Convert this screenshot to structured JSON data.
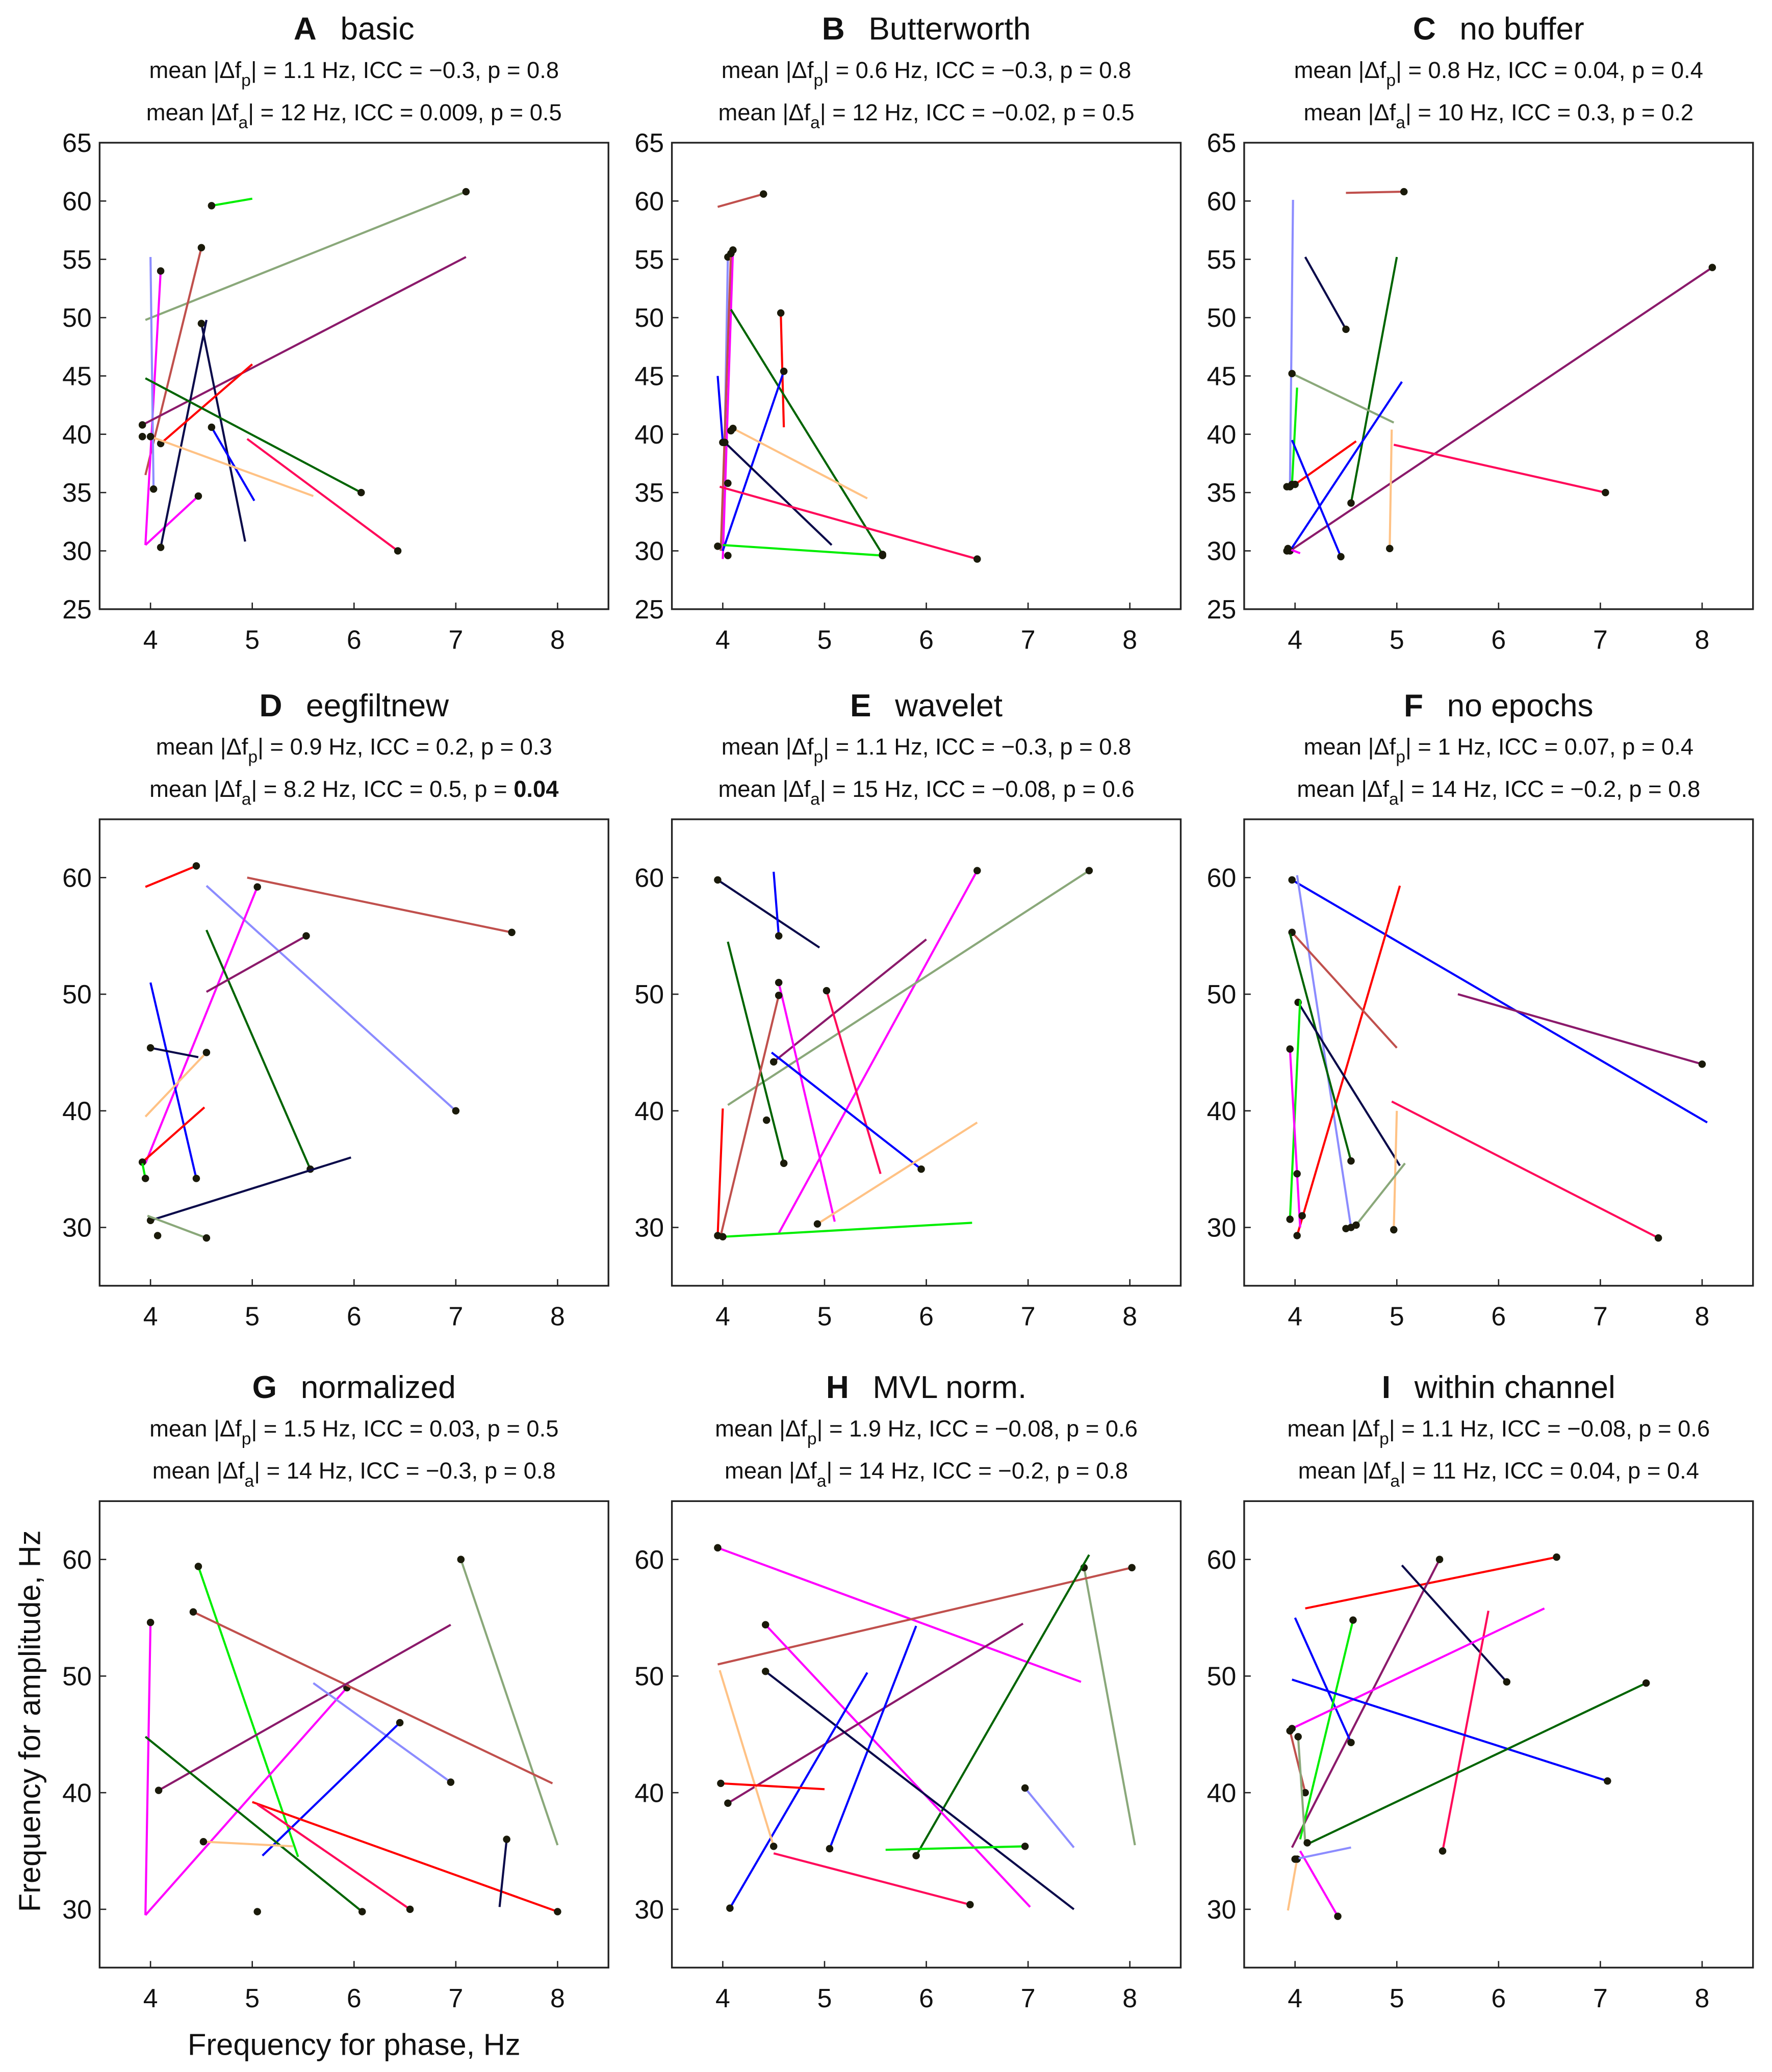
{
  "chart_data": {
    "type": "line",
    "xlabel": "Frequency for phase, Hz",
    "ylabel": "Frequency for amplitude, Hz",
    "xlim": [
      3.5,
      8.5
    ],
    "ylim": [
      25,
      65
    ],
    "xticks": [
      "4",
      "5",
      "6",
      "7",
      "8"
    ],
    "yticks_row1": [
      "25",
      "30",
      "35",
      "40",
      "45",
      "50",
      "55",
      "60",
      "65"
    ],
    "yticks_other": [
      "30",
      "40",
      "50",
      "60"
    ],
    "stat_labels": {
      "prefix": "mean |Δf",
      "mid": "| = ",
      "icc": ", ICC = ",
      "p": ", p = "
    },
    "colors": {
      "green": "#00ee00",
      "greygreen": "#8aa87a",
      "brown": "#c0504d",
      "magenta": "#ff00ff",
      "lightblue": "#8c8cff",
      "purple": "#8b1a6b",
      "navy": "#0a0a4a",
      "red": "#ff0000",
      "darkgreen": "#006400",
      "blue": "#0000ff",
      "peach": "#ffc285",
      "pinkred": "#ff0a5a"
    },
    "panels": [
      {
        "letter": "A",
        "name": "basic",
        "stats": [
          {
            "sub": "p",
            "value": "1.1 Hz",
            "icc": "−0.3",
            "p": "0.8"
          },
          {
            "sub": "a",
            "value": "12 Hz",
            "icc": "0.009",
            "p": "0.5"
          }
        ],
        "segments": [
          [
            "green",
            4.6,
            59.6,
            5.0,
            60.2
          ],
          [
            "greygreen",
            7.1,
            60.8,
            3.95,
            49.8
          ],
          [
            "brown",
            4.5,
            56,
            3.95,
            36.5
          ],
          [
            "magenta",
            4.1,
            54,
            3.95,
            30.5
          ],
          [
            "magenta",
            4.47,
            34.7,
            3.95,
            30.5
          ],
          [
            "lightblue",
            4.03,
            35.3,
            4.0,
            55.2
          ],
          [
            "purple",
            3.92,
            40.8,
            7.1,
            55.2
          ],
          [
            "navy",
            4.5,
            49.5,
            4.93,
            30.8
          ],
          [
            "navy",
            4.1,
            30.3,
            4.55,
            49.8
          ],
          [
            "red",
            4.1,
            39.2,
            5.0,
            46
          ],
          [
            "darkgreen",
            6.07,
            35,
            3.95,
            44.8
          ],
          [
            "blue",
            4.6,
            40.6,
            5.02,
            34.3
          ],
          [
            "peach",
            4.0,
            39.8,
            5.6,
            34.7
          ],
          [
            "pinkred",
            6.43,
            30,
            4.95,
            39.6
          ]
        ],
        "dots": [
          [
            3.92,
            39.8
          ]
        ]
      },
      {
        "letter": "B",
        "name": "Butterworth",
        "stats": [
          {
            "sub": "p",
            "value": "0.6 Hz",
            "icc": "−0.3",
            "p": "0.8"
          },
          {
            "sub": "a",
            "value": "12 Hz",
            "icc": "−0.02",
            "p": "0.5"
          }
        ],
        "segments": [
          [
            "brown",
            4.4,
            60.6,
            3.95,
            59.5
          ],
          [
            "lightblue",
            4.05,
            55.2,
            4.0,
            30
          ],
          [
            "magenta",
            4.1,
            55.8,
            4.0,
            29.3
          ],
          [
            "brown",
            4.08,
            55.5,
            3.98,
            30
          ],
          [
            "red",
            4.57,
            50.4,
            4.6,
            40.6
          ],
          [
            "darkgreen",
            5.57,
            29.7,
            4.08,
            50.7
          ],
          [
            "blue",
            4.6,
            45.4,
            4.0,
            30
          ],
          [
            "blue",
            4.0,
            39.3,
            3.95,
            45
          ],
          [
            "peach",
            4.1,
            40.5,
            5.42,
            34.5
          ],
          [
            "navy",
            4.02,
            39.3,
            5.07,
            30.5
          ],
          [
            "pinkred",
            6.5,
            29.3,
            3.97,
            35.5
          ],
          [
            "green",
            5.57,
            29.6,
            4.0,
            30.5
          ]
        ],
        "dots": [
          [
            4.08,
            40.3
          ],
          [
            3.95,
            30.4
          ],
          [
            4.05,
            29.6
          ],
          [
            4.05,
            35.8
          ]
        ]
      },
      {
        "letter": "C",
        "name": "no buffer",
        "stats": [
          {
            "sub": "p",
            "value": "0.8 Hz",
            "icc": "0.04",
            "p": "0.4"
          },
          {
            "sub": "a",
            "value": "10 Hz",
            "icc": "0.3",
            "p": "0.2"
          }
        ],
        "segments": [
          [
            "brown",
            5.07,
            60.8,
            4.5,
            60.7
          ],
          [
            "lightblue",
            3.95,
            35.5,
            3.98,
            60.1
          ],
          [
            "navy",
            4.5,
            49,
            4.1,
            55.2
          ],
          [
            "darkgreen",
            4.55,
            34.1,
            5.0,
            55.2
          ],
          [
            "purple",
            8.1,
            54.3,
            3.95,
            30
          ],
          [
            "greygreen",
            3.97,
            45.2,
            4.97,
            41
          ],
          [
            "blue",
            3.95,
            30,
            5.05,
            44.5
          ],
          [
            "green",
            3.97,
            35.7,
            4.02,
            44
          ],
          [
            "red",
            4.0,
            35.7,
            4.6,
            39.4
          ],
          [
            "blue",
            4.45,
            29.5,
            3.97,
            39.5
          ],
          [
            "pinkred",
            7.05,
            35,
            4.97,
            39.1
          ],
          [
            "peach",
            4.93,
            30.2,
            4.95,
            40.4
          ],
          [
            "magenta",
            3.93,
            30.2,
            4.05,
            29.8
          ]
        ],
        "dots": [
          [
            3.92,
            35.5
          ],
          [
            3.92,
            30
          ]
        ]
      },
      {
        "letter": "D",
        "name": "eegfiltnew",
        "stats": [
          {
            "sub": "p",
            "value": "0.9 Hz",
            "icc": "0.2",
            "p": "0.3"
          },
          {
            "sub": "a",
            "value": "8.2 Hz",
            "icc": "0.5",
            "p": "0.04",
            "bold": true
          }
        ],
        "segments": [
          [
            "red",
            4.45,
            61,
            3.95,
            59.2
          ],
          [
            "brown",
            7.55,
            55.3,
            4.95,
            60
          ],
          [
            "lightblue",
            7.0,
            40,
            4.55,
            59.3
          ],
          [
            "magenta",
            5.05,
            59.2,
            3.95,
            35.5
          ],
          [
            "darkgreen",
            5.57,
            35,
            4.55,
            55.5
          ],
          [
            "purple",
            5.53,
            55,
            4.55,
            50.2
          ],
          [
            "blue",
            4.45,
            34.2,
            4.0,
            51
          ],
          [
            "navy",
            4.0,
            45.4,
            4.47,
            44.6
          ],
          [
            "peach",
            4.55,
            45,
            3.95,
            39.5
          ],
          [
            "red",
            3.92,
            35.6,
            4.53,
            40.3
          ],
          [
            "navy",
            4.0,
            30.6,
            5.97,
            36
          ],
          [
            "green",
            3.95,
            34.2,
            3.92,
            35.5
          ],
          [
            "greygreen",
            4.55,
            29.1,
            3.97,
            31
          ]
        ],
        "dots": [
          [
            4.07,
            29.3
          ]
        ]
      },
      {
        "letter": "E",
        "name": "wavelet",
        "stats": [
          {
            "sub": "p",
            "value": "1.1 Hz",
            "icc": "−0.3",
            "p": "0.8"
          },
          {
            "sub": "a",
            "value": "15 Hz",
            "icc": "−0.08",
            "p": "0.6"
          }
        ],
        "segments": [
          [
            "navy",
            3.95,
            59.8,
            4.95,
            54
          ],
          [
            "blue",
            4.55,
            55,
            4.5,
            60.5
          ],
          [
            "magenta",
            6.5,
            60.6,
            4.55,
            29.5
          ],
          [
            "greygreen",
            7.6,
            60.6,
            4.05,
            40.5
          ],
          [
            "darkgreen",
            4.6,
            35.5,
            4.05,
            54.5
          ],
          [
            "purple",
            4.5,
            44.2,
            6.0,
            54.7
          ],
          [
            "magenta",
            4.55,
            51,
            5.1,
            30.5
          ],
          [
            "pinkred",
            5.02,
            50.3,
            5.55,
            34.6
          ],
          [
            "brown",
            4.55,
            49.9,
            3.98,
            29.3
          ],
          [
            "blue",
            5.95,
            35,
            4.48,
            45
          ],
          [
            "peach",
            4.93,
            30.3,
            6.5,
            39
          ],
          [
            "red",
            3.95,
            29.3,
            4.0,
            40.2
          ],
          [
            "green",
            4.0,
            29.2,
            6.45,
            30.4
          ]
        ],
        "dots": [
          [
            4.43,
            39.2
          ]
        ]
      },
      {
        "letter": "F",
        "name": "no epochs",
        "stats": [
          {
            "sub": "p",
            "value": "1 Hz",
            "icc": "0.07",
            "p": "0.4"
          },
          {
            "sub": "a",
            "value": "14 Hz",
            "icc": "−0.2",
            "p": "0.8"
          }
        ],
        "segments": [
          [
            "blue",
            3.97,
            59.8,
            8.05,
            39
          ],
          [
            "lightblue",
            4.55,
            30,
            4.02,
            60.2
          ],
          [
            "red",
            4.02,
            29.3,
            5.03,
            59.3
          ],
          [
            "brown",
            3.97,
            55.3,
            5.0,
            45.4
          ],
          [
            "darkgreen",
            4.55,
            35.7,
            3.95,
            55.2
          ],
          [
            "purple",
            8.0,
            44,
            5.6,
            50
          ],
          [
            "navy",
            4.03,
            49.3,
            5.03,
            35.3
          ],
          [
            "green",
            3.95,
            30.7,
            4.05,
            49.5
          ],
          [
            "magenta",
            3.95,
            45.3,
            4.05,
            30
          ],
          [
            "pinkred",
            7.57,
            29.1,
            4.95,
            40.8
          ],
          [
            "peach",
            4.97,
            29.8,
            5.0,
            40
          ],
          [
            "greygreen",
            4.6,
            30.2,
            5.08,
            35.5
          ]
        ],
        "dots": [
          [
            4.5,
            29.9
          ],
          [
            4.07,
            31
          ],
          [
            4.02,
            34.6
          ]
        ]
      },
      {
        "letter": "G",
        "name": "normalized",
        "stats": [
          {
            "sub": "p",
            "value": "1.5 Hz",
            "icc": "0.03",
            "p": "0.5"
          },
          {
            "sub": "a",
            "value": "14 Hz",
            "icc": "−0.3",
            "p": "0.8"
          }
        ],
        "segments": [
          [
            "greygreen",
            7.05,
            60,
            8.0,
            35.5
          ],
          [
            "green",
            4.47,
            59.4,
            5.45,
            34.5
          ],
          [
            "magenta",
            4.0,
            54.6,
            3.95,
            29.5
          ],
          [
            "magenta",
            5.93,
            49,
            3.95,
            29.5
          ],
          [
            "brown",
            4.42,
            55.5,
            7.95,
            40.8
          ],
          [
            "purple",
            4.08,
            40.2,
            6.95,
            54.4
          ],
          [
            "lightblue",
            6.95,
            40.9,
            5.6,
            49.4
          ],
          [
            "blue",
            6.45,
            46,
            5.1,
            34.6
          ],
          [
            "darkgreen",
            6.08,
            29.8,
            3.95,
            44.8
          ],
          [
            "red",
            8.0,
            29.8,
            5.0,
            39.2
          ],
          [
            "pinkred",
            6.55,
            30,
            5.05,
            39
          ],
          [
            "peach",
            4.52,
            35.8,
            5.4,
            35.4
          ],
          [
            "navy",
            7.5,
            36,
            7.43,
            30.2
          ]
        ],
        "dots": [
          [
            5.05,
            29.8
          ]
        ]
      },
      {
        "letter": "H",
        "name": "MVL norm.",
        "stats": [
          {
            "sub": "p",
            "value": "1.9 Hz",
            "icc": "−0.08",
            "p": "0.6"
          },
          {
            "sub": "a",
            "value": "14 Hz",
            "icc": "−0.2",
            "p": "0.8"
          }
        ],
        "segments": [
          [
            "magenta",
            3.95,
            61,
            7.52,
            49.5
          ],
          [
            "greygreen",
            7.55,
            59.3,
            8.05,
            35.5
          ],
          [
            "brown",
            8.02,
            59.3,
            3.95,
            51
          ],
          [
            "darkgreen",
            5.9,
            34.6,
            7.6,
            60.4
          ],
          [
            "magenta",
            4.42,
            54.4,
            7.02,
            30.2
          ],
          [
            "purple",
            4.05,
            39.1,
            6.95,
            54.5
          ],
          [
            "blue",
            5.05,
            35.2,
            5.9,
            54.3
          ],
          [
            "navy",
            4.42,
            50.4,
            7.45,
            30
          ],
          [
            "blue",
            4.07,
            30.1,
            5.42,
            50.3
          ],
          [
            "peach",
            4.5,
            35.4,
            3.97,
            50.5
          ],
          [
            "red",
            3.98,
            40.8,
            5.0,
            40.3
          ],
          [
            "lightblue",
            6.97,
            40.4,
            7.45,
            35.3
          ],
          [
            "green",
            6.97,
            35.4,
            5.6,
            35.1
          ],
          [
            "pinkred",
            6.43,
            30.4,
            4.5,
            34.8
          ]
        ],
        "dots": []
      },
      {
        "letter": "I",
        "name": "within channel",
        "stats": [
          {
            "sub": "p",
            "value": "1.1 Hz",
            "icc": "−0.08",
            "p": "0.6"
          },
          {
            "sub": "a",
            "value": "11 Hz",
            "icc": "0.04",
            "p": "0.4"
          }
        ],
        "segments": [
          [
            "red",
            6.57,
            60.2,
            4.1,
            55.8
          ],
          [
            "purple",
            5.42,
            60,
            3.97,
            35.3
          ],
          [
            "navy",
            6.08,
            49.5,
            5.05,
            59.5
          ],
          [
            "blue",
            4.55,
            44.3,
            4.0,
            55
          ],
          [
            "green",
            4.57,
            54.8,
            4.05,
            36
          ],
          [
            "pinkred",
            5.45,
            35,
            5.9,
            55.6
          ],
          [
            "magenta",
            3.97,
            45.5,
            6.45,
            55.8
          ],
          [
            "blue",
            7.07,
            41,
            3.97,
            49.7
          ],
          [
            "darkgreen",
            7.45,
            49.4,
            4.1,
            35.5
          ],
          [
            "brown",
            4.1,
            40,
            3.95,
            45.3
          ],
          [
            "greygreen",
            4.03,
            44.8,
            4.1,
            35.7
          ],
          [
            "magenta",
            4.42,
            29.4,
            4.05,
            35
          ],
          [
            "peach",
            4.02,
            34.3,
            3.93,
            29.9
          ],
          [
            "lightblue",
            4.0,
            34.3,
            4.55,
            35.3
          ]
        ],
        "dots": [
          [
            3.95,
            45.3
          ],
          [
            4.12,
            35.7
          ]
        ]
      }
    ]
  }
}
